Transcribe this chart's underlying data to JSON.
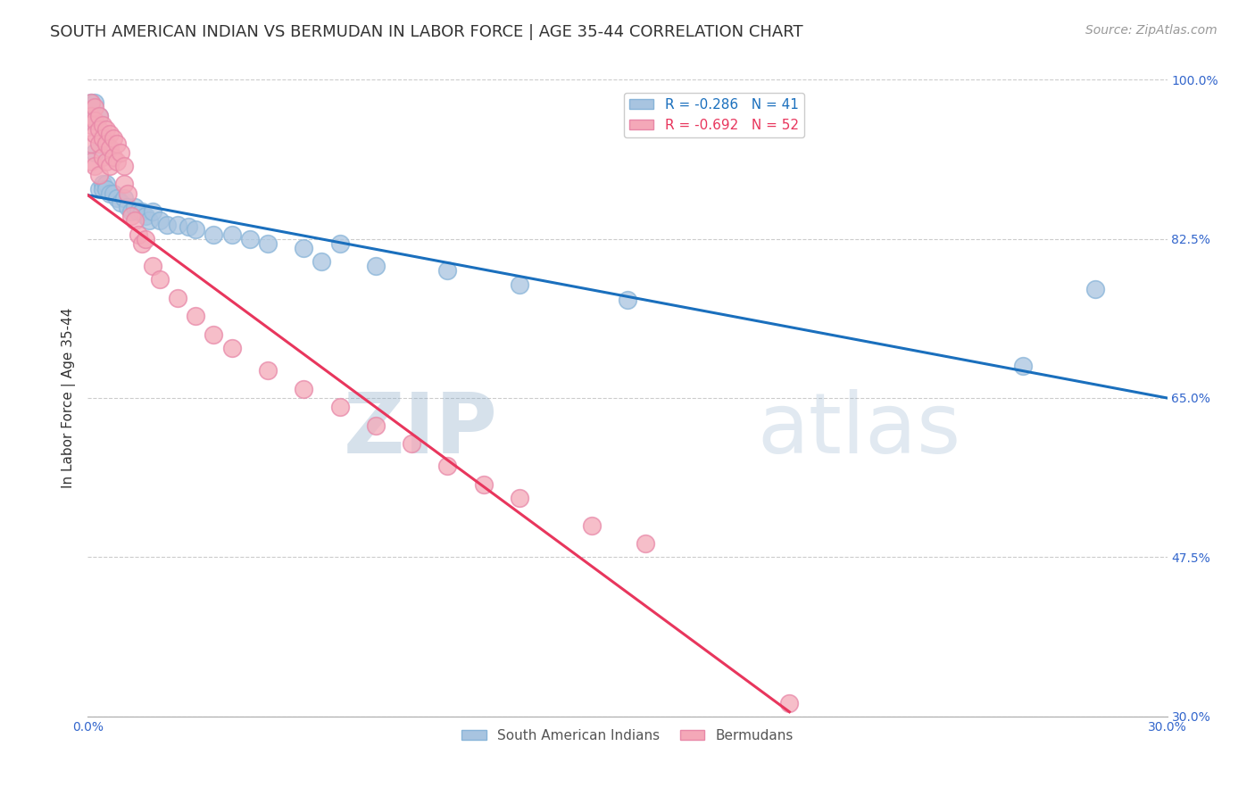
{
  "title": "SOUTH AMERICAN INDIAN VS BERMUDAN IN LABOR FORCE | AGE 35-44 CORRELATION CHART",
  "source": "Source: ZipAtlas.com",
  "ylabel": "In Labor Force | Age 35-44",
  "x_min": 0.0,
  "x_max": 0.3,
  "y_min": 0.3,
  "y_max": 1.0,
  "y_ticks": [
    0.3,
    0.475,
    0.65,
    0.825,
    1.0
  ],
  "y_tick_labels": [
    "30.0%",
    "47.5%",
    "65.0%",
    "82.5%",
    "100.0%"
  ],
  "blue_color": "#a8c4e0",
  "pink_color": "#f4a8b8",
  "blue_line_color": "#1a6fbd",
  "pink_line_color": "#e8365d",
  "blue_R": -0.286,
  "blue_N": 41,
  "pink_R": -0.692,
  "pink_N": 52,
  "watermark_zip": "ZIP",
  "watermark_atlas": "atlas",
  "background_color": "#ffffff",
  "grid_color": "#cccccc",
  "legend_label_blue": "South American Indians",
  "legend_label_pink": "Bermudans",
  "blue_scatter_x": [
    0.001,
    0.001,
    0.002,
    0.002,
    0.003,
    0.003,
    0.004,
    0.004,
    0.005,
    0.005,
    0.006,
    0.007,
    0.008,
    0.009,
    0.01,
    0.011,
    0.012,
    0.013,
    0.014,
    0.015,
    0.016,
    0.017,
    0.018,
    0.02,
    0.022,
    0.025,
    0.028,
    0.03,
    0.035,
    0.04,
    0.045,
    0.05,
    0.06,
    0.065,
    0.07,
    0.08,
    0.1,
    0.12,
    0.15,
    0.26,
    0.28
  ],
  "blue_scatter_y": [
    0.975,
    0.955,
    0.975,
    0.92,
    0.88,
    0.96,
    0.885,
    0.88,
    0.885,
    0.88,
    0.875,
    0.875,
    0.87,
    0.865,
    0.87,
    0.86,
    0.855,
    0.86,
    0.855,
    0.855,
    0.85,
    0.845,
    0.855,
    0.845,
    0.84,
    0.84,
    0.838,
    0.835,
    0.83,
    0.83,
    0.825,
    0.82,
    0.815,
    0.8,
    0.82,
    0.795,
    0.79,
    0.775,
    0.758,
    0.685,
    0.77
  ],
  "pink_scatter_x": [
    0.001,
    0.001,
    0.001,
    0.001,
    0.001,
    0.002,
    0.002,
    0.002,
    0.002,
    0.003,
    0.003,
    0.003,
    0.003,
    0.004,
    0.004,
    0.004,
    0.005,
    0.005,
    0.005,
    0.006,
    0.006,
    0.006,
    0.007,
    0.007,
    0.008,
    0.008,
    0.009,
    0.01,
    0.01,
    0.011,
    0.012,
    0.013,
    0.014,
    0.015,
    0.016,
    0.018,
    0.02,
    0.025,
    0.03,
    0.035,
    0.04,
    0.05,
    0.06,
    0.07,
    0.08,
    0.09,
    0.1,
    0.11,
    0.12,
    0.14,
    0.155,
    0.195
  ],
  "pink_scatter_y": [
    0.975,
    0.96,
    0.95,
    0.93,
    0.91,
    0.97,
    0.955,
    0.94,
    0.905,
    0.96,
    0.945,
    0.93,
    0.895,
    0.95,
    0.935,
    0.915,
    0.945,
    0.93,
    0.91,
    0.94,
    0.925,
    0.905,
    0.935,
    0.915,
    0.93,
    0.91,
    0.92,
    0.905,
    0.885,
    0.875,
    0.85,
    0.845,
    0.83,
    0.82,
    0.825,
    0.795,
    0.78,
    0.76,
    0.74,
    0.72,
    0.705,
    0.68,
    0.66,
    0.64,
    0.62,
    0.6,
    0.575,
    0.555,
    0.54,
    0.51,
    0.49,
    0.315
  ],
  "title_fontsize": 13,
  "axis_label_fontsize": 11,
  "tick_fontsize": 10,
  "legend_fontsize": 11,
  "source_fontsize": 10,
  "blue_line_x0": 0.0,
  "blue_line_y0": 0.873,
  "blue_line_x1": 0.3,
  "blue_line_y1": 0.65,
  "pink_line_x0": 0.0,
  "pink_line_y0": 0.873,
  "pink_line_x1": 0.195,
  "pink_line_y1": 0.305
}
